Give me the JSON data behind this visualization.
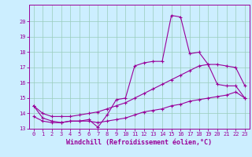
{
  "xlabel": "Windchill (Refroidissement éolien,°C)",
  "x_values": [
    0,
    1,
    2,
    3,
    4,
    5,
    6,
    7,
    8,
    9,
    10,
    11,
    12,
    13,
    14,
    15,
    16,
    17,
    18,
    19,
    20,
    21,
    22,
    23
  ],
  "line1": [
    14.5,
    13.7,
    13.5,
    13.4,
    13.5,
    13.5,
    13.6,
    13.1,
    13.9,
    14.9,
    15.0,
    17.1,
    17.3,
    17.4,
    17.4,
    20.4,
    20.3,
    17.9,
    18.0,
    17.2,
    15.9,
    15.8,
    15.8,
    15.0
  ],
  "line2": [
    14.5,
    14.0,
    13.8,
    13.8,
    13.8,
    13.9,
    14.0,
    14.1,
    14.3,
    14.5,
    14.7,
    15.0,
    15.3,
    15.6,
    15.9,
    16.2,
    16.5,
    16.8,
    17.1,
    17.2,
    17.2,
    17.1,
    17.0,
    15.8
  ],
  "line3": [
    13.8,
    13.5,
    13.4,
    13.4,
    13.5,
    13.5,
    13.5,
    13.4,
    13.5,
    13.6,
    13.7,
    13.9,
    14.1,
    14.2,
    14.3,
    14.5,
    14.6,
    14.8,
    14.9,
    15.0,
    15.1,
    15.2,
    15.4,
    15.0
  ],
  "color": "#990099",
  "bg_color": "#cceeff",
  "grid_color": "#99ccbb",
  "ylim": [
    13,
    21
  ],
  "xlim": [
    -0.5,
    23.5
  ],
  "yticks": [
    13,
    14,
    15,
    16,
    17,
    18,
    19,
    20
  ],
  "xticks": [
    0,
    1,
    2,
    3,
    4,
    5,
    6,
    7,
    8,
    9,
    10,
    11,
    12,
    13,
    14,
    15,
    16,
    17,
    18,
    19,
    20,
    21,
    22,
    23
  ],
  "tick_fontsize": 5.0,
  "label_fontsize": 6.0,
  "marker_size": 2.0,
  "line_width": 0.8
}
